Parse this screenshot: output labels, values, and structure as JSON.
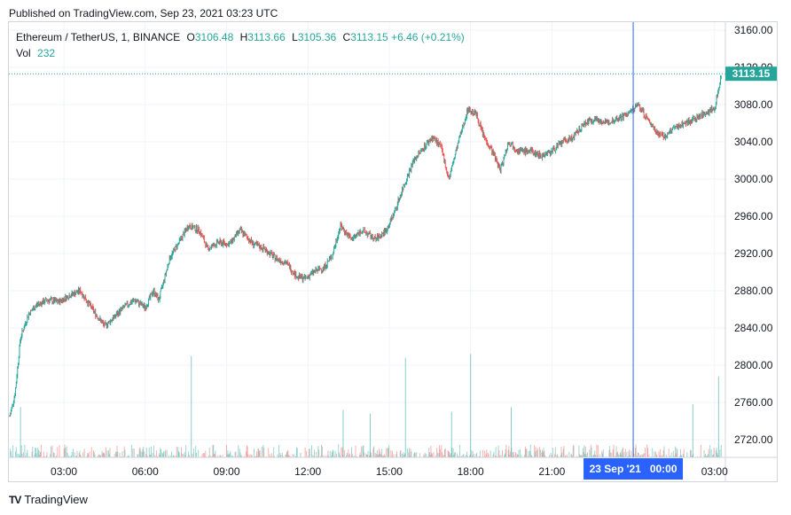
{
  "header": {
    "published": "Published on TradingView.com, Sep 23, 2021 03:23 UTC"
  },
  "legend": {
    "symbol": "Ethereum / TetherUS, 1, BINANCE",
    "o_key": "O",
    "o_val": "3106.48",
    "h_key": "H",
    "h_val": "3113.66",
    "l_key": "L",
    "l_val": "3105.36",
    "c_key": "C",
    "c_val": "3113.15",
    "change": "+6.46 (+0.21%)",
    "vol_key": "Vol",
    "vol_val": "232"
  },
  "price_label": "3113.15",
  "crosshair_label": "23 Sep '21   00:00",
  "footer": {
    "brand": "TradingView",
    "logo": "TV"
  },
  "colors": {
    "up": "#26a69a",
    "down": "#ef5350",
    "crosshair": "#2962ff",
    "grid": "#f0f3fa"
  },
  "chart_data": {
    "type": "candlestick",
    "y_ticks": [
      "3160.00",
      "3120.00",
      "3080.00",
      "3040.00",
      "3000.00",
      "2960.00",
      "2920.00",
      "2880.00",
      "2840.00",
      "2800.00",
      "2760.00",
      "2720.00"
    ],
    "ylim": [
      2700,
      3170
    ],
    "x_ticks": [
      "03:00",
      "06:00",
      "09:00",
      "12:00",
      "15:00",
      "18:00",
      "21:00",
      "03:00"
    ],
    "x_tick_hours": [
      3,
      6,
      9,
      12,
      15,
      18,
      21,
      27
    ],
    "xlim_hours": [
      0.97,
      27.4
    ],
    "crosshair_hour": 24,
    "last_price": 3113.15,
    "price_path": [
      [
        1.0,
        2745
      ],
      [
        1.2,
        2770
      ],
      [
        1.4,
        2830
      ],
      [
        1.7,
        2855
      ],
      [
        2.0,
        2865
      ],
      [
        2.4,
        2870
      ],
      [
        2.8,
        2868
      ],
      [
        3.2,
        2875
      ],
      [
        3.6,
        2880
      ],
      [
        4.1,
        2858
      ],
      [
        4.5,
        2842
      ],
      [
        4.8,
        2850
      ],
      [
        5.2,
        2862
      ],
      [
        5.6,
        2870
      ],
      [
        6.0,
        2862
      ],
      [
        6.3,
        2880
      ],
      [
        6.5,
        2870
      ],
      [
        6.9,
        2915
      ],
      [
        7.3,
        2935
      ],
      [
        7.6,
        2950
      ],
      [
        8.0,
        2945
      ],
      [
        8.3,
        2925
      ],
      [
        8.7,
        2932
      ],
      [
        9.1,
        2930
      ],
      [
        9.5,
        2945
      ],
      [
        10.0,
        2930
      ],
      [
        10.4,
        2925
      ],
      [
        10.8,
        2915
      ],
      [
        11.2,
        2910
      ],
      [
        11.6,
        2895
      ],
      [
        11.9,
        2893
      ],
      [
        12.2,
        2900
      ],
      [
        12.6,
        2905
      ],
      [
        12.9,
        2918
      ],
      [
        13.2,
        2950
      ],
      [
        13.6,
        2935
      ],
      [
        14.0,
        2945
      ],
      [
        14.5,
        2935
      ],
      [
        14.9,
        2945
      ],
      [
        15.2,
        2965
      ],
      [
        15.5,
        2990
      ],
      [
        15.9,
        3020
      ],
      [
        16.3,
        3035
      ],
      [
        16.6,
        3045
      ],
      [
        16.9,
        3035
      ],
      [
        17.2,
        3000
      ],
      [
        17.6,
        3045
      ],
      [
        17.9,
        3075
      ],
      [
        18.2,
        3070
      ],
      [
        18.5,
        3045
      ],
      [
        18.8,
        3030
      ],
      [
        19.1,
        3010
      ],
      [
        19.4,
        3040
      ],
      [
        19.8,
        3030
      ],
      [
        20.2,
        3030
      ],
      [
        20.6,
        3025
      ],
      [
        21.0,
        3030
      ],
      [
        21.4,
        3040
      ],
      [
        21.8,
        3045
      ],
      [
        22.2,
        3060
      ],
      [
        22.6,
        3065
      ],
      [
        23.0,
        3060
      ],
      [
        23.4,
        3065
      ],
      [
        23.8,
        3070
      ],
      [
        24.2,
        3080
      ],
      [
        24.5,
        3065
      ],
      [
        24.9,
        3050
      ],
      [
        25.2,
        3045
      ],
      [
        25.5,
        3055
      ],
      [
        25.9,
        3060
      ],
      [
        26.3,
        3065
      ],
      [
        26.6,
        3070
      ],
      [
        26.9,
        3075
      ],
      [
        27.0,
        3073
      ],
      [
        27.1,
        3090
      ],
      [
        27.25,
        3113
      ]
    ],
    "volume_spikes": [
      {
        "hour": 7.7,
        "value": 2810
      },
      {
        "hour": 15.6,
        "value": 2808
      },
      {
        "hour": 18.0,
        "value": 2812
      },
      {
        "hour": 17.3,
        "value": 2750
      },
      {
        "hour": 14.3,
        "value": 2748
      },
      {
        "hour": 13.3,
        "value": 2752
      },
      {
        "hour": 19.5,
        "value": 2755
      },
      {
        "hour": 27.15,
        "value": 2788
      },
      {
        "hour": 1.4,
        "value": 2755
      },
      {
        "hour": 26.2,
        "value": 2758
      }
    ]
  }
}
